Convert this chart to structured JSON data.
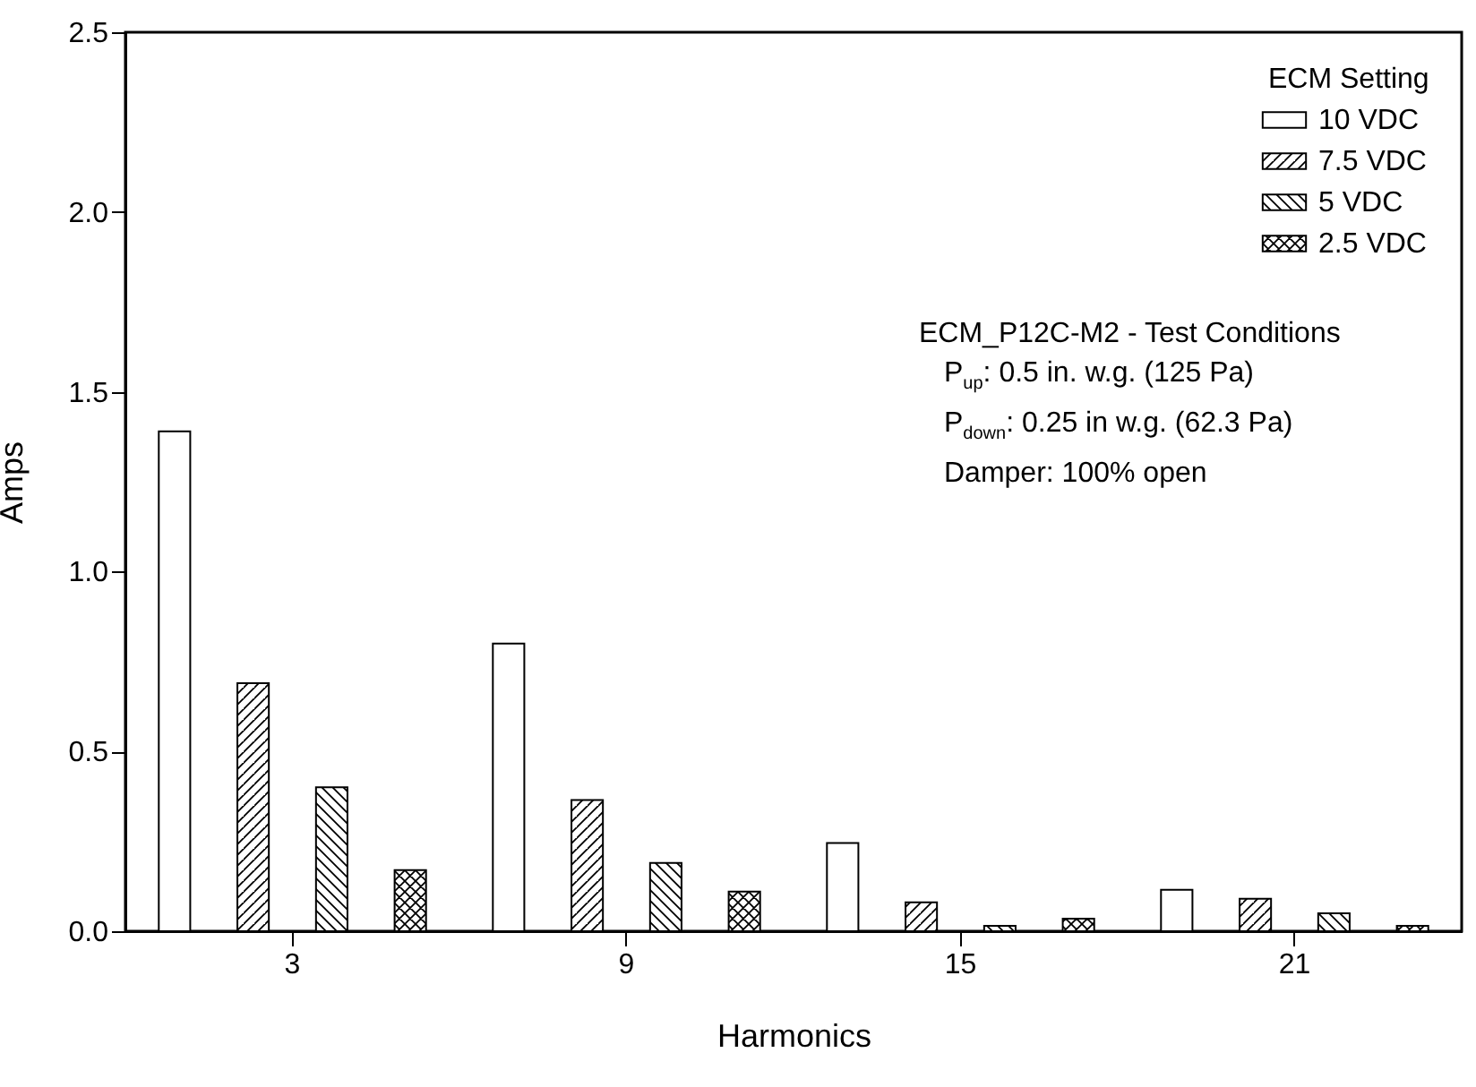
{
  "chart_data": {
    "type": "bar",
    "xlabel": "Harmonics",
    "ylabel": "Amps",
    "legend_title": "ECM Setting",
    "legend": "top right",
    "categories": [
      "3",
      "9",
      "15",
      "21"
    ],
    "series": [
      {
        "name": "10 VDC",
        "color": "#ffffff",
        "values": [
          1.39,
          0.8,
          0.245,
          0.115
        ]
      },
      {
        "name": "7.5 VDC",
        "color": "#000000",
        "values": [
          0.69,
          0.365,
          0.08,
          0.09
        ]
      },
      {
        "name": "5 VDC",
        "color": "#000000",
        "values": [
          0.4,
          0.19,
          0.015,
          0.05
        ]
      },
      {
        "name": "2.5 VDC",
        "color": "#000000",
        "values": [
          0.17,
          0.11,
          0.035,
          0.015
        ]
      }
    ],
    "ylim": [
      0,
      2.5
    ],
    "yticks": [
      {
        "value": 0,
        "label": "0.0"
      },
      0.5,
      {
        "value": 1,
        "label": "1.0"
      },
      1.5,
      {
        "value": 2,
        "label": "2.0"
      },
      2.5
    ],
    "annotations": [
      "ECM_P12C-M2 - Test Conditions",
      "P$_{up}$: 0.5 in. w.g. (125 Pa)",
      "P$_{down}$: 0.25 in w.g. (62.3 Pa)",
      "Damper: 100% open"
    ]
  }
}
